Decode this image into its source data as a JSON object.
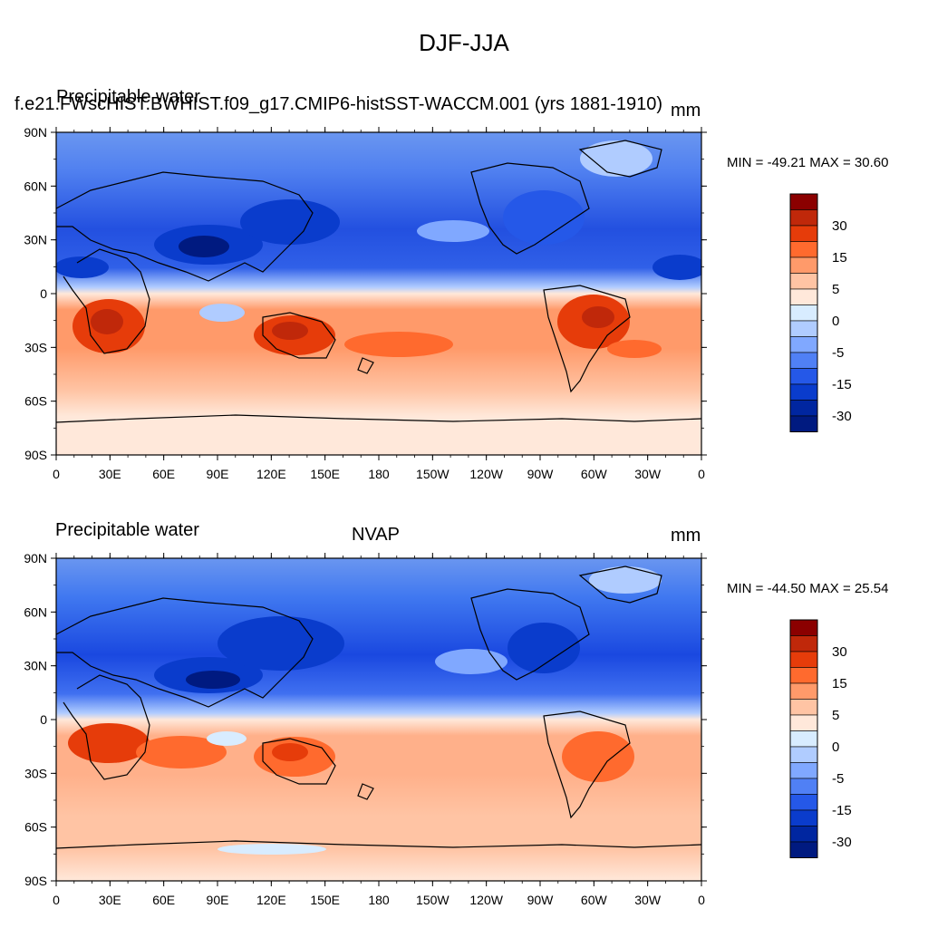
{
  "main_title": "DJF-JJA",
  "panels": [
    {
      "left_title": "Precipitable water",
      "case_title": "f.e21.FWscHIST.BWHIST.f09_g17.CMIP6-histSST-WACCM.001 (yrs 1881-1910)",
      "center_title": "",
      "units": "mm",
      "stats": "MIN = -49.21 MAX =  30.60"
    },
    {
      "left_title": "Precipitable water",
      "case_title": "",
      "center_title": "NVAP",
      "units": "mm",
      "stats": "MIN = -44.50 MAX =  25.54"
    }
  ],
  "lat_labels": [
    "90N",
    "60N",
    "30N",
    "0",
    "30S",
    "60S",
    "90S"
  ],
  "lon_labels": [
    "0",
    "30E",
    "60E",
    "90E",
    "120E",
    "150E",
    "180",
    "150W",
    "120W",
    "90W",
    "60W",
    "30W",
    "0"
  ],
  "colorbar": {
    "labels": [
      "30",
      "15",
      "5",
      "0",
      "-5",
      "-15",
      "-30"
    ],
    "colors": [
      "#8b0000",
      "#c0280a",
      "#e63c0a",
      "#ff6a2e",
      "#ff9a6a",
      "#ffc4a4",
      "#ffe8da",
      "#d8ecff",
      "#b0ccff",
      "#80a8ff",
      "#5080f5",
      "#2558e8",
      "#0a3ccc",
      "#0026a0",
      "#001a80"
    ]
  }
}
